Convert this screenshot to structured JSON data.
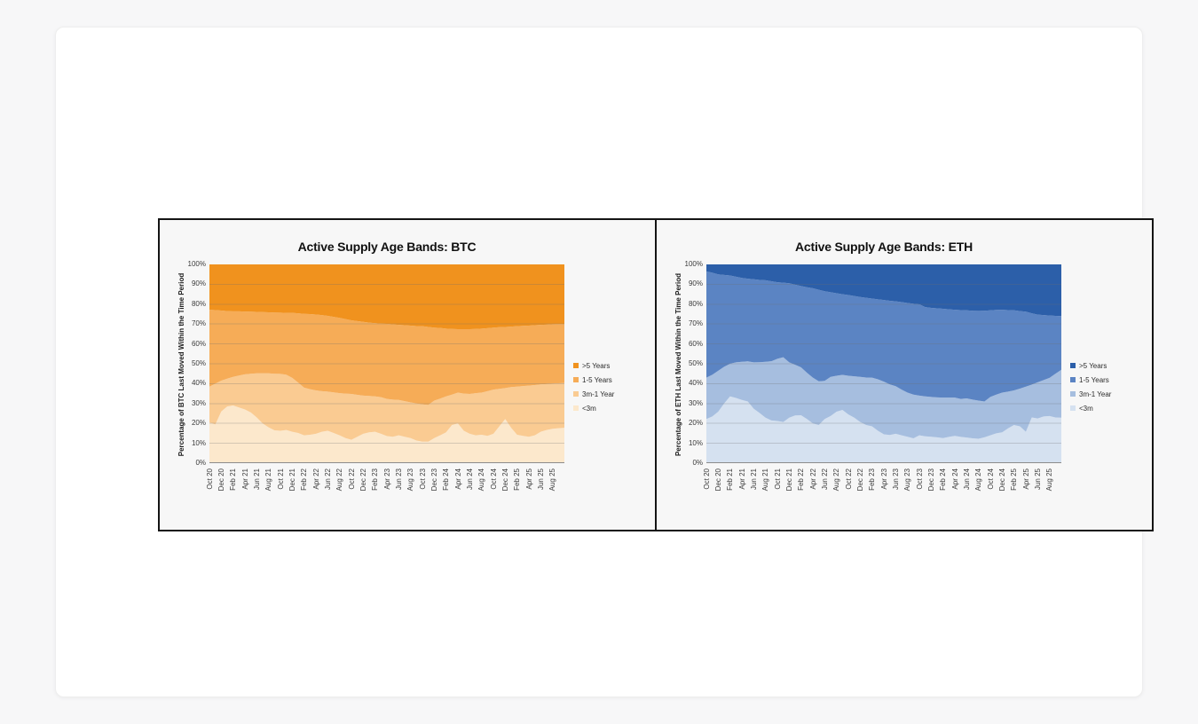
{
  "page": {
    "background": "#F7F7F8",
    "card_background": "#FFFFFF",
    "figure_border_color": "#141414",
    "panel_background": "#F7F7F7"
  },
  "chart_data": [
    {
      "type": "area",
      "stacked": true,
      "normalized_percent": true,
      "title": "Active Supply Age Bands: BTC",
      "xlabel": "",
      "ylabel": "Percentage of BTC Last Moved Within the Time Period",
      "ylim": [
        0,
        100
      ],
      "grid": true,
      "grid_color": "#6E6E6E",
      "baseline_color": "#8C8C8C",
      "legend_position": "right",
      "y_ticks": [
        "0%",
        "10%",
        "20%",
        "30%",
        "40%",
        "50%",
        "60%",
        "70%",
        "80%",
        "90%",
        "100%"
      ],
      "x_tick_labels": [
        "Oct 20",
        "Dec 20",
        "Feb 21",
        "Apr 21",
        "Jun 21",
        "Aug 21",
        "Oct 21",
        "Dec 21",
        "Feb 22",
        "Apr 22",
        "Jun 22",
        "Aug 22",
        "Oct 22",
        "Dec 22",
        "Feb 23",
        "Apr 23",
        "Jun 23",
        "Aug 23",
        "Oct 23",
        "Dec 23",
        "Feb 24",
        "Apr 24",
        "Jun 24",
        "Aug 24",
        "Oct 24",
        "Dec 24",
        "Feb 25",
        "Apr 25",
        "Jun 25",
        "Aug 25"
      ],
      "x_tick_every_months": 2,
      "x_months_span": 60,
      "series_note": "values are cumulative stacked top boundaries (% of supply), monthly points from Oct 20 onward; topmost band fills to 100%",
      "series": [
        {
          "name": "<3m",
          "color": "#FCE8CC",
          "cumulative_top": [
            20.5,
            19.5,
            26,
            28.5,
            29,
            28,
            27,
            25.5,
            23,
            20,
            18,
            16.5,
            16.3,
            16.7,
            15.8,
            15.2,
            14,
            14.3,
            14.8,
            15.8,
            16.3,
            15.2,
            14,
            12.6,
            11.8,
            13.3,
            14.8,
            15.5,
            15.8,
            14.8,
            13.6,
            13.3,
            14,
            13.3,
            12.6,
            11.4,
            10.8,
            10.8,
            12.6,
            14,
            15.5,
            19.2,
            20,
            16.3,
            14.8,
            14,
            14.3,
            13.7,
            14.8,
            18.5,
            22.2,
            17.8,
            14.3,
            13.7,
            13.3,
            14,
            15.8,
            16.7,
            17.3,
            17.6,
            17.8
          ]
        },
        {
          "name": "3m-1 Year",
          "color": "#FACB92",
          "cumulative_top": [
            38.5,
            40,
            41.5,
            42.5,
            43.4,
            44.1,
            44.7,
            45,
            45.2,
            45.2,
            45.2,
            45,
            44.9,
            44.5,
            42.9,
            40.5,
            38,
            37.2,
            36.6,
            36.2,
            36,
            35.6,
            35.2,
            35,
            34.8,
            34.4,
            34,
            33.8,
            33.6,
            33.2,
            32.3,
            32,
            31.8,
            31.2,
            30.6,
            30,
            29.6,
            29.3,
            31.5,
            32.5,
            33.6,
            34.5,
            35.5,
            35,
            34.8,
            35.2,
            35.5,
            36.2,
            37,
            37.4,
            37.8,
            38.3,
            38.5,
            38.8,
            39,
            39.3,
            39.6,
            39.8,
            40,
            40.2,
            40.3
          ]
        },
        {
          "name": "1-5 Years",
          "color": "#F6AC57",
          "cumulative_top": [
            77.2,
            77,
            76.8,
            76.5,
            76.4,
            76.4,
            76.3,
            76.2,
            76.1,
            76,
            75.9,
            75.8,
            75.7,
            75.6,
            75.6,
            75.4,
            75.1,
            75,
            74.8,
            74.5,
            74.1,
            73.6,
            73.1,
            72.5,
            71.9,
            71.5,
            71.1,
            70.7,
            70.4,
            70.2,
            70.1,
            69.8,
            69.6,
            69.4,
            69.2,
            69,
            68.9,
            68.5,
            68.2,
            68,
            67.7,
            67.5,
            67.4,
            67.4,
            67.4,
            67.5,
            67.7,
            67.9,
            68.2,
            68.4,
            68.5,
            68.7,
            68.9,
            69.1,
            69.2,
            69.4,
            69.6,
            69.7,
            69.9,
            70,
            70.1
          ]
        },
        {
          "name": ">5 Years",
          "color": "#F0921E",
          "fills_to_top": true
        }
      ],
      "legend": [
        {
          "label": ">5 Years",
          "color": "#F0921E"
        },
        {
          "label": "1-5 Years",
          "color": "#F6AC57"
        },
        {
          "label": "3m-1 Year",
          "color": "#FACB92"
        },
        {
          "label": "<3m",
          "color": "#FCE8CC"
        }
      ]
    },
    {
      "type": "area",
      "stacked": true,
      "normalized_percent": true,
      "title": "Active Supply Age Bands: ETH",
      "xlabel": "",
      "ylabel": "Percentage of ETH Last Moved Within the Time Period",
      "ylim": [
        0,
        100
      ],
      "grid": true,
      "grid_color": "#6E6E6E",
      "baseline_color": "#8C8C8C",
      "legend_position": "right",
      "y_ticks": [
        "0%",
        "10%",
        "20%",
        "30%",
        "40%",
        "50%",
        "60%",
        "70%",
        "80%",
        "90%",
        "100%"
      ],
      "x_tick_labels": [
        "Oct 20",
        "Dec 20",
        "Feb 21",
        "Apr 21",
        "Jun 21",
        "Aug 21",
        "Oct 21",
        "Dec 21",
        "Feb 22",
        "Apr 22",
        "Jun 22",
        "Aug 22",
        "Oct 22",
        "Dec 22",
        "Feb 23",
        "Apr 23",
        "Jun 23",
        "Aug 23",
        "Oct 23",
        "Dec 23",
        "Feb 24",
        "Apr 24",
        "Jun 24",
        "Aug 24",
        "Oct 24",
        "Dec 24",
        "Feb 25",
        "Apr 25",
        "Jun 25",
        "Aug 25"
      ],
      "x_tick_every_months": 2,
      "x_months_span": 60,
      "series_note": "values are cumulative stacked top boundaries (% of supply), monthly points from Oct 20 onward; topmost band fills to 100%",
      "series": [
        {
          "name": "<3m",
          "color": "#D5E1F0",
          "cumulative_top": [
            22.2,
            23.5,
            25.9,
            30,
            33.6,
            32.8,
            31.8,
            31,
            27.4,
            25.2,
            22.9,
            21.5,
            21.2,
            20.7,
            22.9,
            24,
            24.1,
            22.2,
            20,
            19.2,
            22.2,
            23.7,
            25.9,
            26.8,
            24.5,
            22.9,
            20.7,
            19.2,
            18.5,
            16.3,
            14.5,
            14.2,
            14.8,
            14,
            13.3,
            12.5,
            14,
            13.5,
            13.3,
            13,
            12.6,
            13.2,
            13.7,
            13.2,
            12.9,
            12.5,
            12.3,
            13,
            14,
            15,
            15.5,
            17.5,
            19.2,
            18.5,
            15.8,
            23,
            22.5,
            23.5,
            23.7,
            23,
            22.9
          ]
        },
        {
          "name": "3m-1 Year",
          "color": "#A6BEDF",
          "cumulative_top": [
            43,
            44.5,
            46.5,
            48.5,
            50,
            50.7,
            51,
            51.2,
            50.7,
            50.8,
            51,
            51.3,
            52.5,
            53.3,
            50.7,
            49.5,
            48.2,
            45.5,
            43,
            41.2,
            41.4,
            43.4,
            44,
            44.4,
            44,
            43.7,
            43.4,
            43.1,
            43,
            42.2,
            41,
            39.6,
            38.7,
            37,
            35.5,
            34.5,
            34,
            33.6,
            33.3,
            33.1,
            33,
            33,
            33,
            32.3,
            32.6,
            32,
            31.5,
            31,
            33.3,
            34.5,
            35.5,
            36,
            36.6,
            37.5,
            38.5,
            39.5,
            40.7,
            41.8,
            42.9,
            45,
            47
          ]
        },
        {
          "name": "1-5 Years",
          "color": "#5B84C3",
          "cumulative_top": [
            96.5,
            95.8,
            95,
            94.7,
            94.4,
            93.8,
            93.2,
            92.8,
            92.5,
            92.2,
            92,
            91.5,
            91,
            90.8,
            90.5,
            89.8,
            89.1,
            88.5,
            88,
            87.2,
            86.5,
            86,
            85.5,
            85,
            84.6,
            84.1,
            83.6,
            83.2,
            82.8,
            82.4,
            82.1,
            81.7,
            81.4,
            81,
            80.6,
            80.2,
            79.9,
            78.5,
            78.1,
            77.9,
            77.7,
            77.4,
            77.2,
            77,
            76.9,
            76.7,
            76.6,
            76.7,
            76.9,
            77.1,
            77.2,
            77,
            76.9,
            76.5,
            76.2,
            75.4,
            74.7,
            74.5,
            74.3,
            74.1,
            74
          ]
        },
        {
          "name": ">5 Years",
          "color": "#2C5FA9",
          "fills_to_top": true
        }
      ],
      "legend": [
        {
          "label": ">5 Years",
          "color": "#2C5FA9"
        },
        {
          "label": "1-5 Years",
          "color": "#5B84C3"
        },
        {
          "label": "3m-1 Year",
          "color": "#A6BEDF"
        },
        {
          "label": "<3m",
          "color": "#D5E1F0"
        }
      ]
    }
  ]
}
